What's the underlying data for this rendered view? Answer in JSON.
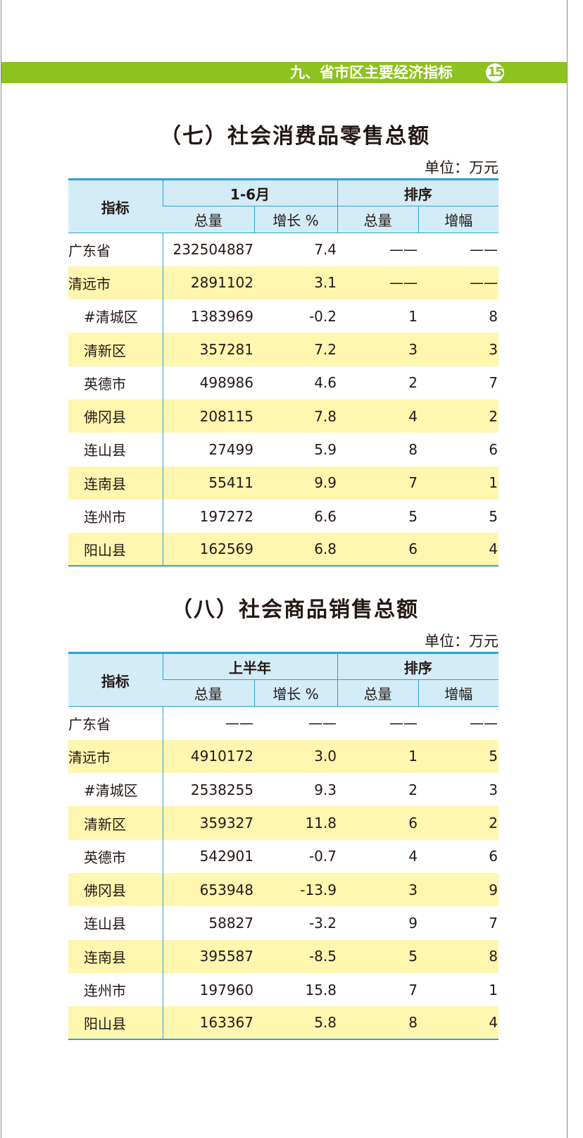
{
  "header": {
    "section": "九、省市区主要经济指标",
    "page": "15"
  },
  "tables": [
    {
      "title": "（七）社会消费品零售总额",
      "unit": "单位：万元",
      "col_indicator": "指标",
      "group1": "1-6月",
      "group2": "排序",
      "cols": [
        "总量",
        "增长 %",
        "总量",
        "增幅"
      ],
      "rows": [
        [
          "广东省",
          "232504887",
          "7.4",
          "——",
          "——"
        ],
        [
          "清远市",
          "2891102",
          "3.1",
          "——",
          "——"
        ],
        [
          "#清城区",
          "1383969",
          "-0.2",
          "1",
          "8"
        ],
        [
          "清新区",
          "357281",
          "7.2",
          "3",
          "3"
        ],
        [
          "英德市",
          "498986",
          "4.6",
          "2",
          "7"
        ],
        [
          "佛冈县",
          "208115",
          "7.8",
          "4",
          "2"
        ],
        [
          "连山县",
          "27499",
          "5.9",
          "8",
          "6"
        ],
        [
          "连南县",
          "55411",
          "9.9",
          "7",
          "1"
        ],
        [
          "连州市",
          "197272",
          "6.6",
          "5",
          "5"
        ],
        [
          "阳山县",
          "162569",
          "6.8",
          "6",
          "4"
        ]
      ]
    },
    {
      "title": "（八）社会商品销售总额",
      "unit": "单位：万元",
      "col_indicator": "指标",
      "group1": "上半年",
      "group2": "排序",
      "cols": [
        "总量",
        "增长 %",
        "总量",
        "增幅"
      ],
      "rows": [
        [
          "广东省",
          "——",
          "——",
          "——",
          "——"
        ],
        [
          "清远市",
          "4910172",
          "3.0",
          "1",
          "5"
        ],
        [
          "#清城区",
          "2538255",
          "9.3",
          "2",
          "3"
        ],
        [
          "清新区",
          "359327",
          "11.8",
          "6",
          "2"
        ],
        [
          "英德市",
          "542901",
          "-0.7",
          "4",
          "6"
        ],
        [
          "佛冈县",
          "653948",
          "-13.9",
          "3",
          "9"
        ],
        [
          "连山县",
          "58827",
          "-3.2",
          "9",
          "7"
        ],
        [
          "连南县",
          "395587",
          "-8.5",
          "5",
          "8"
        ],
        [
          "连州市",
          "197960",
          "15.8",
          "7",
          "1"
        ],
        [
          "阳山县",
          "163367",
          "5.8",
          "8",
          "4"
        ]
      ]
    }
  ],
  "colors": {
    "bar": "#8dc21f",
    "header_bg": "#d3ecf7",
    "rule": "#29a3d6",
    "stripe": "#fff6b0"
  }
}
